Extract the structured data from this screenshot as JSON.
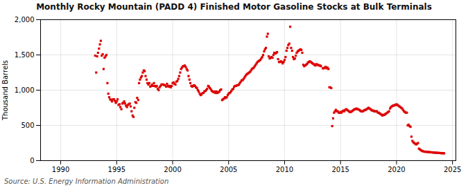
{
  "chart_data": {
    "type": "scatter",
    "title": "Monthly Rocky Mountain (PADD 4) Finished Motor Gasoline Stocks at Bulk Terminals",
    "ylabel": "Thousand Barrels",
    "source": "Source: U.S. Energy Information Administration",
    "color": "#dd0000",
    "marker": "square",
    "grid": true,
    "xlim": [
      1988.2,
      2025.3
    ],
    "xticks": [
      1990,
      1995,
      2000,
      2005,
      2010,
      2015,
      2020,
      2025
    ],
    "ylim": [
      0,
      2000
    ],
    "yticks": [
      0,
      500,
      {
        "value": 1000,
        "label": "1,000"
      },
      {
        "value": 1500,
        "label": "1,500"
      },
      {
        "value": 2000,
        "label": "2,000"
      }
    ],
    "x": [
      1993.08,
      1993.17,
      1993.25,
      1993.33,
      1993.42,
      1993.5,
      1993.58,
      1993.67,
      1993.75,
      1993.83,
      1993.92,
      1994.0,
      1994.08,
      1994.17,
      1994.25,
      1994.33,
      1994.42,
      1994.5,
      1994.58,
      1994.67,
      1994.75,
      1994.83,
      1994.92,
      1995.0,
      1995.08,
      1995.17,
      1995.25,
      1995.33,
      1995.42,
      1995.5,
      1995.58,
      1995.67,
      1995.75,
      1995.83,
      1995.92,
      1996.0,
      1996.08,
      1996.17,
      1996.25,
      1996.33,
      1996.42,
      1996.5,
      1996.58,
      1996.67,
      1996.75,
      1996.83,
      1996.92,
      1997.0,
      1997.08,
      1997.17,
      1997.25,
      1997.33,
      1997.42,
      1997.5,
      1997.58,
      1997.67,
      1997.75,
      1997.83,
      1997.92,
      1998.0,
      1998.08,
      1998.17,
      1998.25,
      1998.33,
      1998.42,
      1998.5,
      1998.58,
      1998.67,
      1998.75,
      1998.83,
      1998.92,
      1999.0,
      1999.08,
      1999.17,
      1999.25,
      1999.33,
      1999.42,
      1999.5,
      1999.58,
      1999.67,
      1999.75,
      1999.83,
      1999.92,
      2000.0,
      2000.08,
      2000.17,
      2000.25,
      2000.33,
      2000.42,
      2000.5,
      2000.58,
      2000.67,
      2000.75,
      2000.83,
      2000.92,
      2001.0,
      2001.08,
      2001.17,
      2001.25,
      2001.33,
      2001.42,
      2001.5,
      2001.58,
      2001.67,
      2001.75,
      2001.83,
      2001.92,
      2002.0,
      2002.08,
      2002.17,
      2002.25,
      2002.33,
      2002.42,
      2002.5,
      2002.58,
      2002.67,
      2002.75,
      2002.83,
      2002.92,
      2003.0,
      2003.08,
      2003.17,
      2003.25,
      2003.33,
      2003.42,
      2003.5,
      2003.58,
      2003.67,
      2003.75,
      2003.83,
      2003.92,
      2004.0,
      2004.08,
      2004.17,
      2004.25,
      2004.33,
      2004.42,
      2004.5,
      2004.58,
      2004.67,
      2004.75,
      2004.83,
      2004.92,
      2005.0,
      2005.08,
      2005.17,
      2005.25,
      2005.33,
      2005.42,
      2005.5,
      2005.58,
      2005.67,
      2005.75,
      2005.83,
      2005.92,
      2006.0,
      2006.08,
      2006.17,
      2006.25,
      2006.33,
      2006.42,
      2006.5,
      2006.58,
      2006.67,
      2006.75,
      2006.83,
      2006.92,
      2007.0,
      2007.08,
      2007.17,
      2007.25,
      2007.33,
      2007.42,
      2007.5,
      2007.58,
      2007.67,
      2007.75,
      2007.83,
      2007.92,
      2008.0,
      2008.08,
      2008.17,
      2008.25,
      2008.33,
      2008.42,
      2008.5,
      2008.58,
      2008.67,
      2008.75,
      2008.83,
      2008.92,
      2009.0,
      2009.08,
      2009.17,
      2009.25,
      2009.33,
      2009.42,
      2009.5,
      2009.58,
      2009.67,
      2009.75,
      2009.83,
      2009.92,
      2010.0,
      2010.08,
      2010.17,
      2010.25,
      2010.33,
      2010.42,
      2010.5,
      2010.58,
      2010.67,
      2010.75,
      2010.83,
      2010.92,
      2011.0,
      2011.08,
      2011.17,
      2011.25,
      2011.33,
      2011.42,
      2011.5,
      2011.58,
      2011.67,
      2011.75,
      2011.83,
      2011.92,
      2012.0,
      2012.08,
      2012.17,
      2012.25,
      2012.33,
      2012.42,
      2012.5,
      2012.58,
      2012.67,
      2012.75,
      2012.83,
      2012.92,
      2013.0,
      2013.08,
      2013.17,
      2013.25,
      2013.42,
      2013.5,
      2013.58,
      2013.67,
      2013.75,
      2013.83,
      2013.92,
      2014.0,
      2014.08,
      2014.17,
      2014.25,
      2014.33,
      2014.42,
      2014.5,
      2014.58,
      2014.67,
      2014.75,
      2014.83,
      2014.92,
      2015.0,
      2015.08,
      2015.17,
      2015.25,
      2015.33,
      2015.42,
      2015.5,
      2015.58,
      2015.67,
      2015.75,
      2015.83,
      2015.92,
      2016.0,
      2016.08,
      2016.17,
      2016.25,
      2016.33,
      2016.42,
      2016.5,
      2016.58,
      2016.67,
      2016.75,
      2016.83,
      2016.92,
      2017.0,
      2017.08,
      2017.17,
      2017.25,
      2017.33,
      2017.42,
      2017.5,
      2017.58,
      2017.67,
      2017.75,
      2017.83,
      2017.92,
      2018.0,
      2018.08,
      2018.17,
      2018.25,
      2018.33,
      2018.42,
      2018.5,
      2018.58,
      2018.67,
      2018.75,
      2018.83,
      2018.92,
      2019.0,
      2019.08,
      2019.17,
      2019.25,
      2019.33,
      2019.42,
      2019.5,
      2019.58,
      2019.67,
      2019.75,
      2019.83,
      2019.92,
      2020.0,
      2020.08,
      2020.17,
      2020.25,
      2020.33,
      2020.42,
      2020.5,
      2020.58,
      2020.67,
      2020.75,
      2020.83,
      2020.92,
      2021.0,
      2021.08,
      2021.17,
      2021.25,
      2021.33,
      2021.42,
      2021.5,
      2021.58,
      2021.67,
      2021.75,
      2021.83,
      2021.92,
      2022.0,
      2022.08,
      2022.17,
      2022.25,
      2022.33,
      2022.42,
      2022.5,
      2022.58,
      2022.67,
      2022.75,
      2022.83,
      2022.92,
      2023.0,
      2023.08,
      2023.17,
      2023.25,
      2023.33,
      2023.42,
      2023.5,
      2023.58,
      2023.67,
      2023.75,
      2023.83,
      2023.92,
      2024.0,
      2024.08,
      2024.17,
      2024.25
    ],
    "values": [
      1490,
      1250,
      1480,
      1530,
      1590,
      1650,
      1700,
      1490,
      1510,
      1300,
      1460,
      1480,
      1500,
      1100,
      950,
      900,
      870,
      860,
      840,
      870,
      870,
      850,
      820,
      840,
      870,
      790,
      800,
      760,
      730,
      810,
      820,
      840,
      810,
      780,
      760,
      790,
      800,
      810,
      770,
      700,
      640,
      620,
      750,
      830,
      820,
      890,
      860,
      1100,
      1150,
      1180,
      1200,
      1250,
      1280,
      1270,
      1200,
      1150,
      1100,
      1080,
      1100,
      1050,
      1060,
      1080,
      1060,
      1100,
      1060,
      1050,
      1060,
      1020,
      1000,
      1040,
      1060,
      1080,
      1080,
      1080,
      1070,
      1070,
      1050,
      1090,
      1060,
      1050,
      1060,
      1040,
      1060,
      1100,
      1110,
      1090,
      1080,
      1120,
      1130,
      1160,
      1200,
      1250,
      1300,
      1320,
      1340,
      1340,
      1350,
      1330,
      1300,
      1280,
      1200,
      1150,
      1100,
      1060,
      1050,
      1060,
      1070,
      1060,
      1040,
      1030,
      1000,
      980,
      950,
      930,
      940,
      960,
      960,
      980,
      990,
      1000,
      1020,
      1060,
      1050,
      1030,
      1010,
      990,
      980,
      970,
      980,
      960,
      980,
      960,
      970,
      980,
      1000,
      1010,
      860,
      870,
      880,
      900,
      890,
      900,
      930,
      950,
      960,
      970,
      990,
      1010,
      1020,
      1050,
      1060,
      1060,
      1070,
      1070,
      1080,
      1100,
      1120,
      1140,
      1140,
      1160,
      1180,
      1200,
      1220,
      1230,
      1240,
      1250,
      1260,
      1280,
      1300,
      1310,
      1320,
      1340,
      1360,
      1380,
      1400,
      1410,
      1420,
      1430,
      1450,
      1470,
      1500,
      1550,
      1580,
      1600,
      1760,
      1800,
      1480,
      1450,
      1460,
      1470,
      1460,
      1500,
      1530,
      1520,
      1530,
      1540,
      1440,
      1400,
      1400,
      1410,
      1400,
      1380,
      1400,
      1430,
      1470,
      1560,
      1600,
      1640,
      1660,
      1900,
      1600,
      1560,
      1470,
      1440,
      1450,
      1490,
      1530,
      1550,
      1560,
      1570,
      1580,
      1570,
      1530,
      1360,
      1340,
      1350,
      1360,
      1370,
      1390,
      1400,
      1410,
      1400,
      1390,
      1380,
      1370,
      1360,
      1350,
      1370,
      1360,
      1360,
      1350,
      1350,
      1340,
      1310,
      1310,
      1320,
      1330,
      1310,
      1320,
      1300,
      1040,
      1040,
      1030,
      490,
      600,
      680,
      700,
      720,
      700,
      700,
      680,
      680,
      690,
      680,
      700,
      710,
      700,
      720,
      730,
      720,
      710,
      700,
      690,
      690,
      700,
      710,
      720,
      730,
      730,
      740,
      730,
      730,
      720,
      710,
      700,
      700,
      700,
      710,
      720,
      720,
      730,
      740,
      750,
      740,
      730,
      720,
      710,
      710,
      700,
      700,
      700,
      700,
      680,
      680,
      670,
      660,
      650,
      640,
      650,
      650,
      660,
      670,
      680,
      690,
      700,
      740,
      760,
      770,
      780,
      780,
      790,
      790,
      800,
      790,
      780,
      770,
      760,
      750,
      740,
      720,
      700,
      690,
      680,
      680,
      500,
      510,
      490,
      480,
      340,
      280,
      260,
      250,
      240,
      230,
      240,
      250,
      170,
      160,
      150,
      140,
      135,
      130,
      128,
      125,
      125,
      125,
      123,
      120,
      120,
      118,
      118,
      115,
      115,
      113,
      112,
      112,
      110,
      110,
      108,
      108,
      106,
      105,
      105,
      104
    ]
  }
}
